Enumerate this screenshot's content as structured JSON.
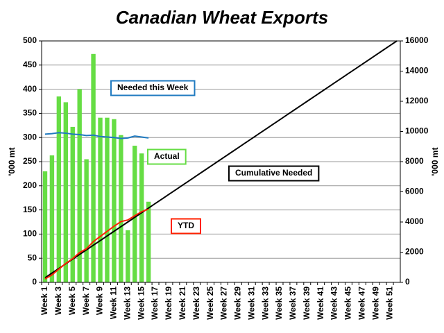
{
  "chart_data": {
    "type": "bar",
    "title": "Canadian Wheat Exports",
    "y_label": "'000 mt",
    "y2_label": "'000 mt",
    "categories": [
      "Week 1",
      null,
      "Week 3",
      null,
      "Week 5",
      null,
      "Week 7",
      null,
      "Week 9",
      null,
      "Week 11",
      null,
      "Week 13",
      null,
      "Week 15",
      null,
      "Week 17",
      null,
      "Week 19",
      null,
      "Week 21",
      null,
      "Week 23",
      null,
      "Week 25",
      null,
      "Week 27",
      null,
      "Week 29",
      null,
      "Week 31",
      null,
      "Week 33",
      null,
      "Week 35",
      null,
      "Week 37",
      null,
      "Week 39",
      null,
      "Week 41",
      null,
      "Week 43",
      null,
      "Week 45",
      null,
      "Week 47",
      null,
      "Week 49",
      null,
      "Week 51",
      null
    ],
    "ylim": [
      0,
      500
    ],
    "yticks": [
      0,
      50,
      100,
      150,
      200,
      250,
      300,
      350,
      400,
      450,
      500
    ],
    "y2lim": [
      0,
      16000
    ],
    "y2ticks": [
      0,
      2000,
      4000,
      6000,
      8000,
      10000,
      12000,
      14000,
      16000
    ],
    "grid": true,
    "series": [
      {
        "name": "Actual",
        "type": "bar",
        "color": "#66dd44",
        "axis": "y",
        "values": [
          230,
          263,
          385,
          373,
          322,
          400,
          255,
          473,
          341,
          341,
          338,
          305,
          108,
          283,
          267,
          167,
          null,
          null,
          null,
          null,
          null,
          null,
          null,
          null,
          null,
          null,
          null,
          null,
          null,
          null,
          null,
          null,
          null,
          null,
          null,
          null,
          null,
          null,
          null,
          null,
          null,
          null,
          null,
          null,
          null,
          null,
          null,
          null,
          null,
          null,
          null,
          null
        ]
      },
      {
        "name": "Needed this Week",
        "type": "line",
        "color": "#1f7ac0",
        "axis": "y",
        "values": [
          307,
          308,
          310,
          309,
          307,
          306,
          304,
          305,
          302,
          301,
          300,
          298,
          299,
          303,
          301,
          299,
          null,
          null,
          null,
          null,
          null,
          null,
          null,
          null,
          null,
          null,
          null,
          null,
          null,
          null,
          null,
          null,
          null,
          null,
          null,
          null,
          null,
          null,
          null,
          null,
          null,
          null,
          null,
          null,
          null,
          null,
          null,
          null,
          null,
          null,
          null,
          null
        ]
      },
      {
        "name": "Cumulative Needed",
        "type": "line",
        "color": "#000000",
        "axis": "y2",
        "values": [
          308,
          615,
          923,
          1231,
          1538,
          1846,
          2154,
          2462,
          2769,
          3077,
          3385,
          3692,
          4000,
          4308,
          4615,
          4923,
          5231,
          5538,
          5846,
          6154,
          6462,
          6769,
          7077,
          7385,
          7692,
          8000,
          8308,
          8615,
          8923,
          9231,
          9538,
          9846,
          10154,
          10462,
          10769,
          11077,
          11385,
          11692,
          12000,
          12308,
          12615,
          12923,
          13231,
          13538,
          13846,
          14154,
          14462,
          14769,
          15077,
          15385,
          15692,
          16000
        ]
      },
      {
        "name": "YTD",
        "type": "line",
        "color": "#ff2200",
        "axis": "y2",
        "values": [
          230,
          493,
          878,
          1251,
          1573,
          1973,
          2228,
          2701,
          3042,
          3383,
          3721,
          4026,
          4134,
          4417,
          4684,
          4851,
          null,
          null,
          null,
          null,
          null,
          null,
          null,
          null,
          null,
          null,
          null,
          null,
          null,
          null,
          null,
          null,
          null,
          null,
          null,
          null,
          null,
          null,
          null,
          null,
          null,
          null,
          null,
          null,
          null,
          null,
          null,
          null,
          null,
          null,
          null,
          null
        ]
      }
    ]
  }
}
